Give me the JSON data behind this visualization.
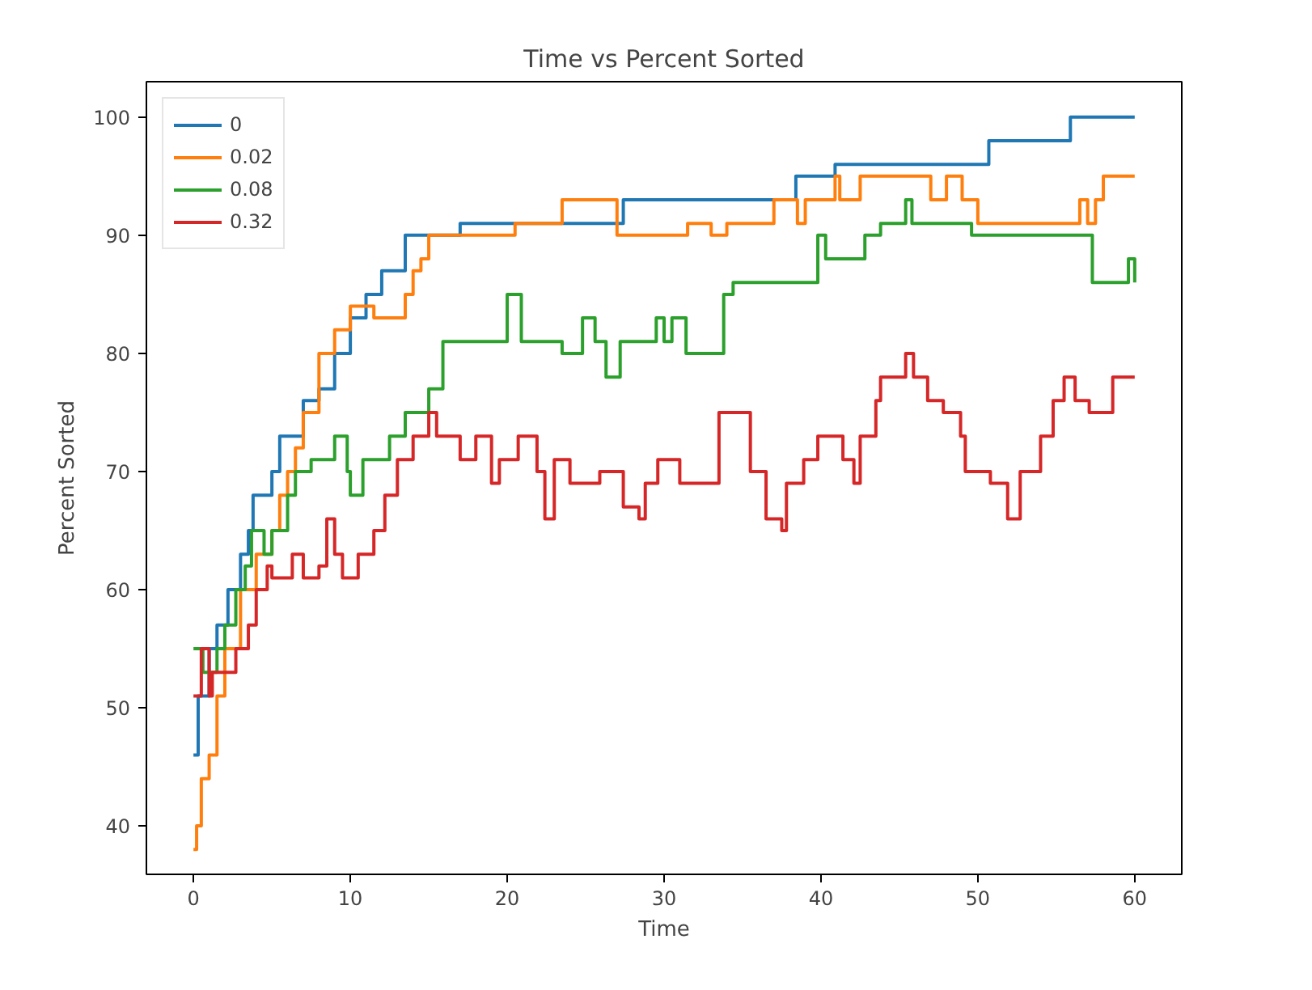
{
  "chart_data": {
    "type": "step",
    "title": "Time vs Percent Sorted",
    "xlabel": "Time",
    "ylabel": "Percent Sorted",
    "xlim": [
      -3,
      63
    ],
    "ylim": [
      35.9,
      103
    ],
    "xticks": [
      0,
      10,
      20,
      30,
      40,
      50,
      60
    ],
    "yticks": [
      40,
      50,
      60,
      70,
      80,
      90,
      100
    ],
    "grid": false,
    "legend": "top left",
    "line_style": "solid",
    "series": [
      {
        "name": "0",
        "color": "#1f77b4",
        "x": [
          0,
          0.3,
          1,
          1.5,
          2.2,
          3,
          3.5,
          3.8,
          5,
          5.5,
          7,
          8,
          9,
          10,
          11,
          12,
          13.5,
          17,
          23.5,
          27.4,
          38.4,
          40.9,
          50.7,
          55.9,
          60
        ],
        "values": [
          46,
          51,
          55,
          57,
          60,
          63,
          65,
          68,
          70,
          73,
          76,
          77,
          80,
          83,
          85,
          87,
          90,
          91,
          91,
          93,
          95,
          96,
          98,
          100,
          100
        ]
      },
      {
        "name": "0.02",
        "color": "#ff7f0e",
        "x": [
          0,
          0.2,
          0.5,
          1,
          1.5,
          2,
          3,
          4,
          5,
          5.5,
          6,
          6.5,
          7,
          8,
          9,
          10,
          11.5,
          13.5,
          14,
          14.5,
          15,
          20.5,
          23.5,
          27,
          31.5,
          33,
          34,
          37,
          38.5,
          39,
          39.5,
          40.9,
          41.2,
          42.5,
          47,
          48,
          49,
          50,
          56.5,
          57,
          57.5,
          58,
          60
        ],
        "values": [
          38,
          40,
          44,
          46,
          51,
          55,
          60,
          63,
          65,
          68,
          70,
          72,
          75,
          80,
          82,
          84,
          83,
          85,
          87,
          88,
          90,
          91,
          93,
          90,
          91,
          90,
          91,
          93,
          91,
          93,
          93,
          95,
          93,
          95,
          93,
          95,
          93,
          91,
          93,
          91,
          93,
          95,
          95
        ]
      },
      {
        "name": "0.08",
        "color": "#2ca02c",
        "x": [
          0,
          0.6,
          1.5,
          2,
          2.7,
          3.3,
          3.7,
          4.5,
          5,
          6,
          6.5,
          7.5,
          9,
          9.8,
          10,
          10.8,
          12.5,
          13.5,
          15,
          15.9,
          20,
          20.9,
          23,
          23.5,
          24.8,
          25.6,
          26.3,
          27.2,
          29.5,
          30,
          30.5,
          31.4,
          33.8,
          34.4,
          37.5,
          39.8,
          40.3,
          42.8,
          43.8,
          45.4,
          45.8,
          49.6,
          57.3,
          59.6,
          60
        ],
        "values": [
          55,
          53,
          55,
          57,
          60,
          62,
          65,
          63,
          65,
          68,
          70,
          71,
          73,
          70,
          68,
          71,
          73,
          75,
          77,
          81,
          85,
          81,
          81,
          80,
          83,
          81,
          78,
          81,
          83,
          81,
          83,
          80,
          85,
          86,
          86,
          90,
          88,
          90,
          91,
          93,
          91,
          90,
          86,
          88,
          86
        ]
      },
      {
        "name": "0.32",
        "color": "#d62728",
        "x": [
          0,
          0.5,
          1,
          1.2,
          2.7,
          3.5,
          4,
          4.7,
          5,
          6.3,
          7,
          8,
          8.5,
          9,
          9.5,
          10.5,
          11.5,
          12.2,
          13,
          14,
          15,
          15.5,
          17,
          18,
          19,
          19.5,
          20.7,
          21.9,
          22.4,
          23,
          24,
          25.9,
          27.4,
          28.4,
          28.8,
          29.6,
          31,
          33.5,
          35.5,
          36.5,
          37.5,
          37.8,
          38.9,
          39.8,
          41.4,
          42.1,
          42.5,
          43.5,
          43.8,
          45.4,
          45.9,
          46.8,
          47.8,
          48.9,
          49.2,
          50.8,
          51.9,
          52.7,
          54,
          54.8,
          55.5,
          56.2,
          57.1,
          58.6,
          60
        ],
        "values": [
          51,
          55,
          51,
          53,
          55,
          57,
          60,
          62,
          61,
          63,
          61,
          62,
          66,
          63,
          61,
          63,
          65,
          68,
          71,
          73,
          75,
          73,
          71,
          73,
          69,
          71,
          73,
          70,
          66,
          71,
          69,
          70,
          67,
          66,
          69,
          71,
          69,
          75,
          70,
          66,
          65,
          69,
          71,
          73,
          71,
          69,
          73,
          76,
          78,
          80,
          78,
          76,
          75,
          73,
          70,
          69,
          66,
          70,
          73,
          76,
          78,
          76,
          75,
          78,
          78
        ]
      }
    ]
  }
}
